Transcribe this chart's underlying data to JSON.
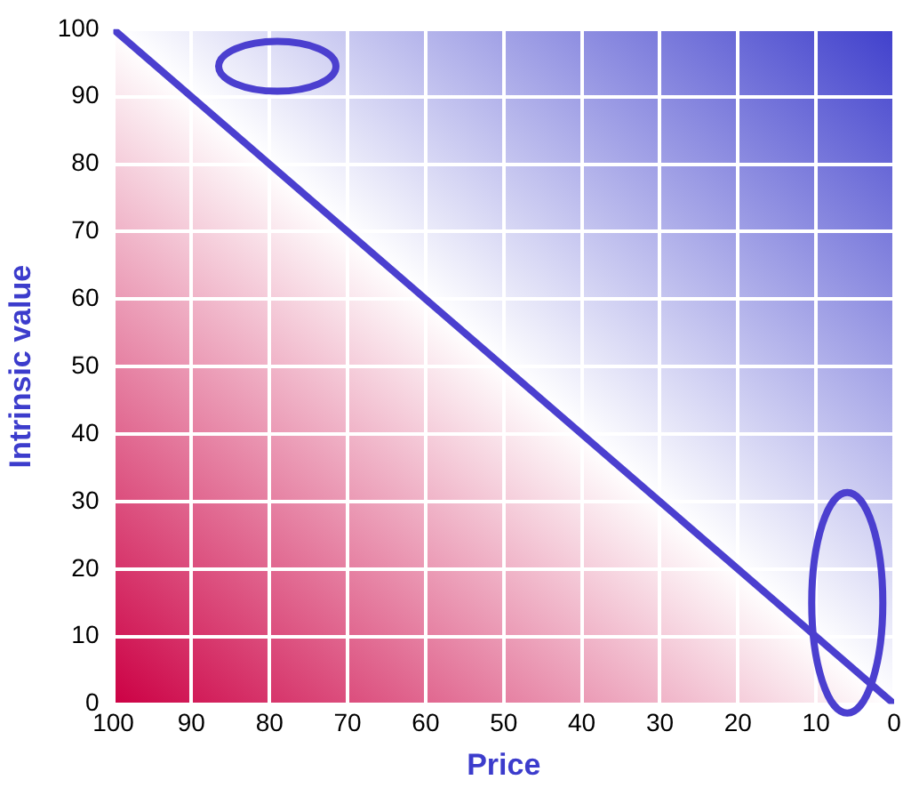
{
  "chart_data": {
    "type": "line",
    "xlabel": "Price",
    "ylabel": "Intrinsic value",
    "x": [
      100,
      0
    ],
    "series": [
      {
        "color": "#4b3fcf",
        "values": [
          100,
          0
        ]
      }
    ],
    "xlim": [
      100,
      0
    ],
    "xticks": [
      100,
      90,
      80,
      70,
      60,
      50,
      40,
      30,
      20,
      10,
      0
    ],
    "ylim": [
      0,
      100
    ],
    "yticks": [
      0,
      10,
      20,
      30,
      40,
      50,
      60,
      70,
      80,
      90,
      100
    ],
    "grid": true,
    "legend": false,
    "marker": "none",
    "line_style": "solid"
  }
}
